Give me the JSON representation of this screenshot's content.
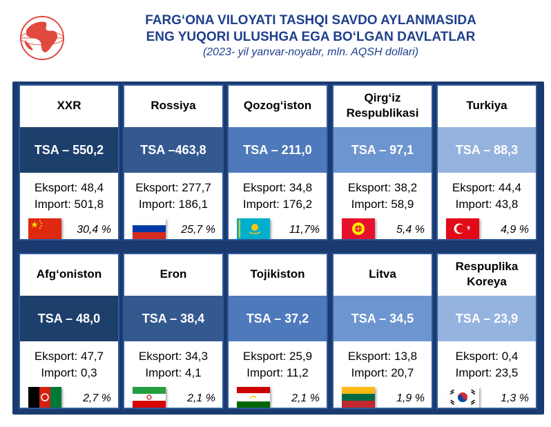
{
  "header": {
    "title_line1": "FARG‘ONA VILOYATI TASHQI SAVDO AYLANMASIDA",
    "title_line2": "ENG YUQORI ULUSHGA EGA BO‘LGAN DAVLATLAR",
    "subtitle": "(2023- yil yanvar-noyabr, mln. AQSH dollari)"
  },
  "colors": {
    "title": "#1f3f8c",
    "panel": "#1b3a70",
    "logo": "#d9302c"
  },
  "countries": [
    {
      "name": "XXR",
      "tsa": "TSA – 550,2",
      "export": "Eksport: 48,4",
      "import": "Import: 501,8",
      "share": "30,4 %",
      "flag": "china-flag-icon"
    },
    {
      "name": "Rossiya",
      "tsa": "TSA –463,8",
      "export": "Eksport: 277,7",
      "import": "Import: 186,1",
      "share": "25,7 %",
      "flag": "russia-flag-icon"
    },
    {
      "name": "Qozog‘iston",
      "tsa": "TSA – 211,0",
      "export": "Eksport: 34,8",
      "import": "Import: 176,2",
      "share": "11,7%",
      "flag": "kazakhstan-flag-icon"
    },
    {
      "name": "Qirg‘iz Respublikasi",
      "tsa": "TSA – 97,1",
      "export": "Eksport: 38,2",
      "import": "Import: 58,9",
      "share": "5,4 %",
      "flag": "kyrgyzstan-flag-icon"
    },
    {
      "name": "Turkiya",
      "tsa": "TSA – 88,3",
      "export": "Eksport: 44,4",
      "import": "Import: 43,8",
      "share": "4,9 %",
      "flag": "turkey-flag-icon"
    },
    {
      "name": "Afg‘oniston",
      "tsa": "TSA – 48,0",
      "export": "Eksport: 47,7",
      "import": "Import: 0,3",
      "share": "2,7 %",
      "flag": "afghanistan-flag-icon"
    },
    {
      "name": "Eron",
      "tsa": "TSA – 38,4",
      "export": "Eksport: 34,3",
      "import": "Import: 4,1",
      "share": "2,1 %",
      "flag": "iran-flag-icon"
    },
    {
      "name": "Tojikiston",
      "tsa": "TSA – 37,2",
      "export": "Eksport: 25,9",
      "import": "Import: 11,2",
      "share": "2,1 %",
      "flag": "tajikistan-flag-icon"
    },
    {
      "name": "Litva",
      "tsa": "TSA – 34,5",
      "export": "Eksport: 13,8",
      "import": "Import: 20,7",
      "share": "1,9 %",
      "flag": "lithuania-flag-icon"
    },
    {
      "name": "Respuplika Koreya",
      "tsa": "TSA – 23,9",
      "export": "Eksport: 0,4",
      "import": "Import: 23,5",
      "share": "1,3 %",
      "flag": "south-korea-flag-icon"
    }
  ]
}
